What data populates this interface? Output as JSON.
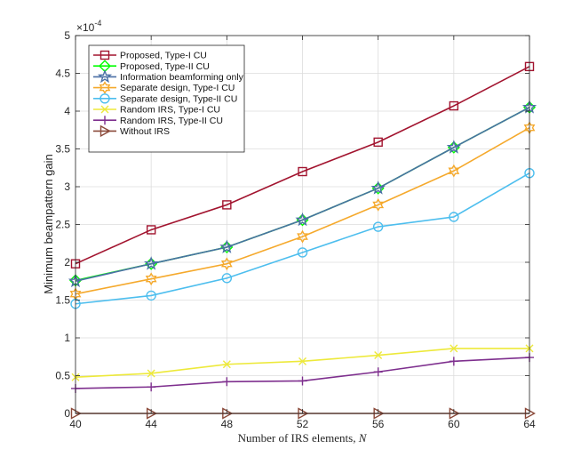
{
  "chart_data": {
    "type": "line",
    "title": "",
    "xlabel": "Number of IRS elements, ",
    "xlabel_var": "N",
    "ylabel": "Minimum beampattern gain",
    "y_multiplier_base": "×10",
    "y_multiplier_exp": "-4",
    "x": [
      40,
      44,
      48,
      52,
      56,
      60,
      64
    ],
    "xlim": [
      40,
      64
    ],
    "ylim": [
      0,
      5
    ],
    "xticks": [
      "40",
      "44",
      "48",
      "52",
      "56",
      "60",
      "64"
    ],
    "yticks": [
      "0",
      "0.5",
      "1",
      "1.5",
      "2",
      "2.5",
      "3",
      "3.5",
      "4",
      "4.5",
      "5"
    ],
    "grid": true,
    "legend_position": "top-left",
    "series": [
      {
        "name": "Proposed, Type-I CU",
        "values": [
          1.98,
          2.43,
          2.76,
          3.2,
          3.59,
          4.07,
          4.59
        ],
        "color": "#A2142F",
        "marker": "square"
      },
      {
        "name": "Proposed, Type-II CU",
        "values": [
          1.76,
          1.98,
          2.2,
          2.56,
          2.98,
          3.52,
          4.05
        ],
        "color": "#00FF00",
        "marker": "diamond"
      },
      {
        "name": "Information beamforming only",
        "values": [
          1.75,
          1.98,
          2.2,
          2.56,
          2.98,
          3.52,
          4.05
        ],
        "color": "#4A6FA5",
        "marker": "star"
      },
      {
        "name": "Separate design, Type-I CU",
        "values": [
          1.58,
          1.78,
          1.98,
          2.34,
          2.76,
          3.21,
          3.78
        ],
        "color": "#F5A92C",
        "marker": "hexagram"
      },
      {
        "name": "Separate design, Type-II CU",
        "values": [
          1.45,
          1.56,
          1.79,
          2.13,
          2.47,
          2.6,
          3.18
        ],
        "color": "#4DBEEE",
        "marker": "circle"
      },
      {
        "name": "Random IRS, Type-I CU",
        "values": [
          0.48,
          0.53,
          0.65,
          0.69,
          0.77,
          0.86,
          0.86
        ],
        "color": "#EDE93A",
        "marker": "x"
      },
      {
        "name": "Random IRS, Type-II CU",
        "values": [
          0.33,
          0.35,
          0.42,
          0.43,
          0.55,
          0.69,
          0.74
        ],
        "color": "#7E2F8E",
        "marker": "plus"
      },
      {
        "name": "Without IRS",
        "values": [
          0,
          0,
          0,
          0,
          0,
          0,
          0
        ],
        "color": "#8B4A3A",
        "marker": "triangle-right"
      }
    ]
  }
}
